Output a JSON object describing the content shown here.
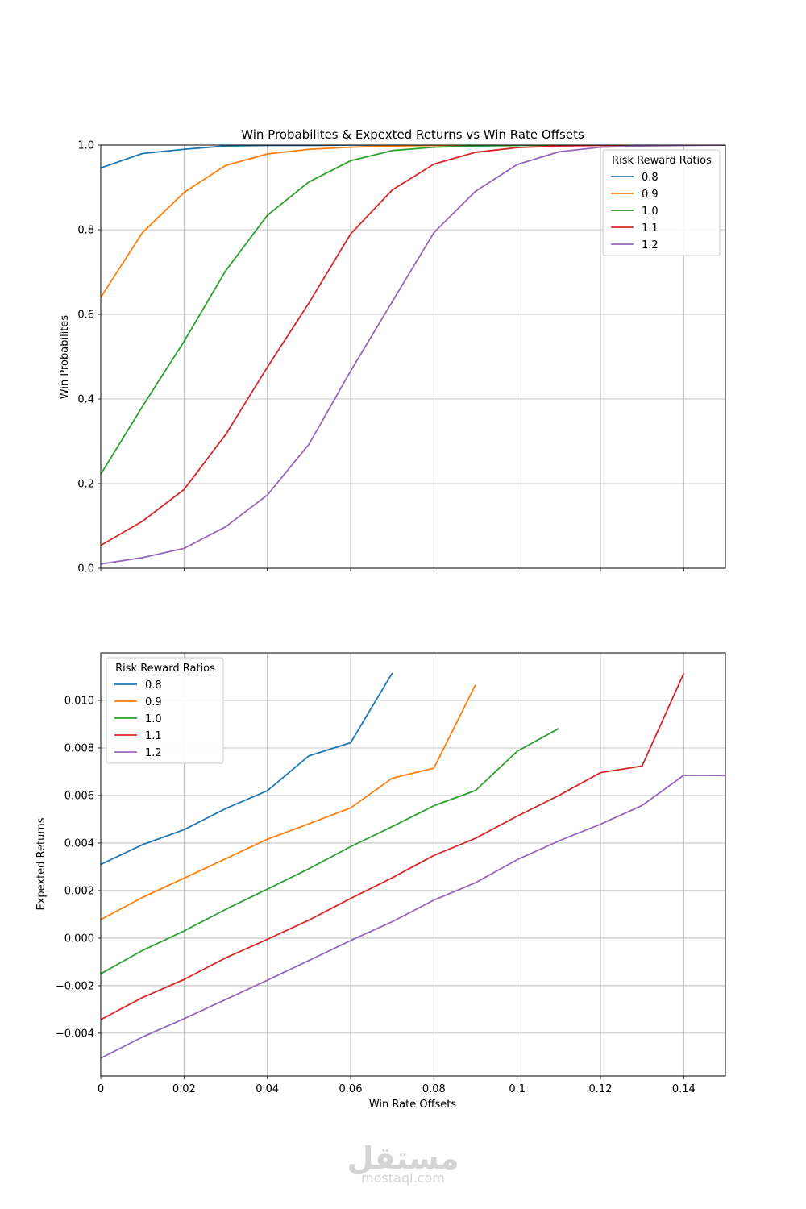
{
  "chart_data": [
    {
      "type": "line",
      "title": "Win Probabilites & Expexted Returns vs Win Rate Offsets",
      "xlabel": "",
      "ylabel": "Win Probabilites",
      "xlim": [
        0,
        0.15
      ],
      "ylim": [
        0,
        1
      ],
      "y_ticks": [
        "0.0",
        "0.2",
        "0.4",
        "0.6",
        "0.8",
        "1.0"
      ],
      "y_tick_values": [
        0,
        0.2,
        0.4,
        0.6,
        0.8,
        1.0
      ],
      "x_tick_values": [
        0,
        0.02,
        0.04,
        0.06,
        0.08,
        0.1,
        0.12,
        0.14
      ],
      "grid": true,
      "legend": {
        "title": "Risk Reward Ratios",
        "placement": "upper-right"
      },
      "x": [
        0,
        0.01,
        0.02,
        0.03,
        0.04,
        0.05,
        0.06,
        0.07,
        0.08,
        0.09,
        0.1,
        0.11,
        0.12,
        0.13,
        0.14,
        0.15
      ],
      "series": [
        {
          "name": "0.8",
          "color": "#1f77b4",
          "values": [
            0.946,
            0.98,
            0.99,
            0.998,
            0.999,
            0.999,
            1.0,
            1.0,
            1.0,
            1.0,
            1.0,
            1.0,
            1.0,
            1.0,
            1.0,
            1.0
          ]
        },
        {
          "name": "0.9",
          "color": "#ff7f0e",
          "values": [
            0.64,
            0.793,
            0.888,
            0.952,
            0.979,
            0.99,
            0.995,
            0.998,
            0.999,
            1.0,
            1.0,
            1.0,
            1.0,
            1.0,
            1.0,
            1.0
          ]
        },
        {
          "name": "1.0",
          "color": "#2ca02c",
          "values": [
            0.222,
            0.382,
            0.536,
            0.703,
            0.834,
            0.913,
            0.963,
            0.987,
            0.995,
            0.998,
            0.999,
            1.0,
            1.0,
            1.0,
            1.0,
            1.0
          ]
        },
        {
          "name": "1.1",
          "color": "#d62728",
          "values": [
            0.054,
            0.111,
            0.186,
            0.316,
            0.475,
            0.627,
            0.79,
            0.894,
            0.955,
            0.983,
            0.994,
            0.998,
            0.999,
            1.0,
            1.0,
            1.0
          ]
        },
        {
          "name": "1.2",
          "color": "#9467bd",
          "values": [
            0.01,
            0.025,
            0.047,
            0.098,
            0.173,
            0.293,
            0.466,
            0.63,
            0.793,
            0.891,
            0.954,
            0.984,
            0.995,
            0.998,
            0.999,
            1.0
          ]
        }
      ]
    },
    {
      "type": "line",
      "title": "",
      "xlabel": "Win Rate Offsets",
      "ylabel": "Expexted Returns",
      "xlim": [
        0,
        0.15
      ],
      "ylim": [
        -0.0058,
        0.012
      ],
      "x_ticks": [
        "0",
        "0.02",
        "0.04",
        "0.06",
        "0.08",
        "0.1",
        "0.12",
        "0.14"
      ],
      "x_tick_values": [
        0,
        0.02,
        0.04,
        0.06,
        0.08,
        0.1,
        0.12,
        0.14
      ],
      "y_ticks": [
        "−0.004",
        "−0.002",
        "0.000",
        "0.002",
        "0.004",
        "0.006",
        "0.008",
        "0.010"
      ],
      "y_tick_values": [
        -0.004,
        -0.002,
        0,
        0.002,
        0.004,
        0.006,
        0.008,
        0.01
      ],
      "grid": true,
      "legend": {
        "title": "Risk Reward Ratios",
        "placement": "upper-left"
      },
      "series": [
        {
          "name": "0.8",
          "color": "#1f77b4",
          "x": [
            0,
            0.01,
            0.02,
            0.03,
            0.04,
            0.05,
            0.06,
            0.07
          ],
          "values": [
            0.0031,
            0.00393,
            0.00456,
            0.00545,
            0.0062,
            0.00767,
            0.00822,
            0.01115
          ]
        },
        {
          "name": "0.9",
          "color": "#ff7f0e",
          "x": [
            0,
            0.01,
            0.02,
            0.03,
            0.04,
            0.05,
            0.06,
            0.07,
            0.08,
            0.09
          ],
          "values": [
            0.00078,
            0.00171,
            0.00252,
            0.00334,
            0.00416,
            0.00481,
            0.00548,
            0.00673,
            0.00715,
            0.01066
          ]
        },
        {
          "name": "1.0",
          "color": "#2ca02c",
          "x": [
            0,
            0.01,
            0.02,
            0.03,
            0.04,
            0.05,
            0.06,
            0.07,
            0.08,
            0.09,
            0.1,
            0.11
          ],
          "values": [
            -0.0015,
            -0.00052,
            0.0003,
            0.00121,
            0.00206,
            0.00292,
            0.00385,
            0.00469,
            0.00557,
            0.00621,
            0.00786,
            0.00882
          ]
        },
        {
          "name": "1.1",
          "color": "#d62728",
          "x": [
            0,
            0.01,
            0.02,
            0.03,
            0.04,
            0.05,
            0.06,
            0.07,
            0.08,
            0.09,
            0.1,
            0.11,
            0.12,
            0.13,
            0.14
          ],
          "values": [
            -0.00343,
            -0.0025,
            -0.00174,
            -0.00083,
            -5e-05,
            0.00076,
            0.00167,
            0.00254,
            0.00348,
            0.0042,
            0.00513,
            0.006,
            0.00696,
            0.00724,
            0.01114
          ]
        },
        {
          "name": "1.2",
          "color": "#9467bd",
          "x": [
            0,
            0.01,
            0.02,
            0.03,
            0.04,
            0.05,
            0.06,
            0.07,
            0.08,
            0.09,
            0.1,
            0.11,
            0.12,
            0.13,
            0.14,
            0.15
          ],
          "values": [
            -0.00505,
            -0.00416,
            -0.00339,
            -0.00258,
            -0.00177,
            -0.00094,
            -0.0001,
            0.00069,
            0.0016,
            0.00233,
            0.0033,
            0.00409,
            0.00479,
            0.00558,
            0.00685,
            0.00684
          ]
        }
      ]
    }
  ],
  "watermark": {
    "logo_text": "مستقل",
    "caption": "mostaql.com"
  }
}
